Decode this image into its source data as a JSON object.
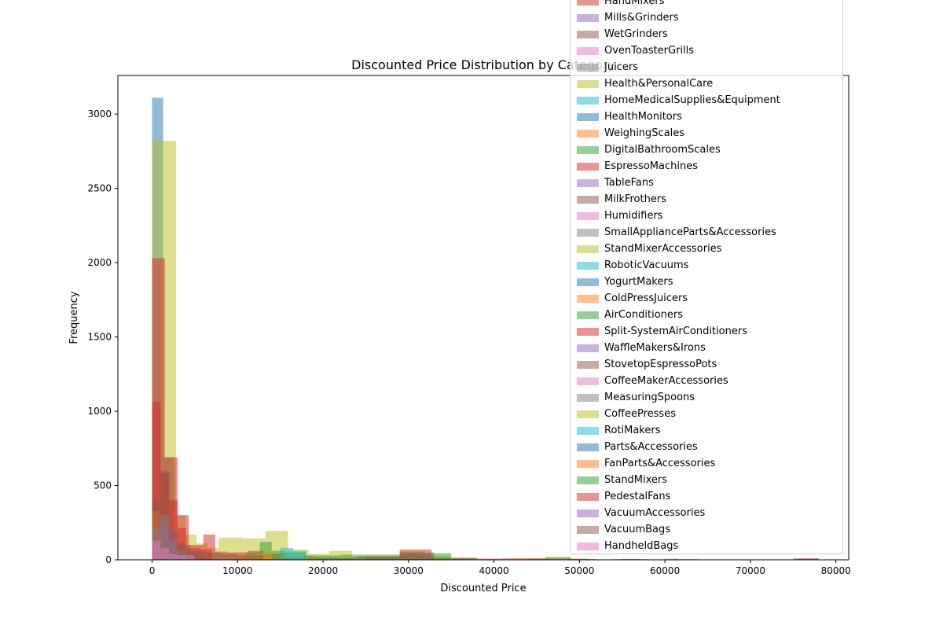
{
  "chart_data": {
    "type": "bar",
    "chart_kind": "overlaid histogram",
    "title": "Discounted Price Distribution by Category",
    "xlabel": "Discounted Price",
    "ylabel": "Frequency",
    "xlim": [
      -4000,
      81500
    ],
    "ylim": [
      0,
      3260
    ],
    "xticks": [
      0,
      10000,
      20000,
      30000,
      40000,
      50000,
      60000,
      70000,
      80000
    ],
    "yticks": [
      0,
      500,
      1000,
      1500,
      2000,
      2500,
      3000
    ],
    "grid": false,
    "legend_position": "upper right",
    "opacity": 0.5,
    "legend": [
      {
        "name": "HandMixers",
        "color": "#d62728"
      },
      {
        "name": "Mills&Grinders",
        "color": "#9467bd"
      },
      {
        "name": "WetGrinders",
        "color": "#8c564b"
      },
      {
        "name": "OvenToasterGrills",
        "color": "#e377c2"
      },
      {
        "name": "Juicers",
        "color": "#7f7f7f"
      },
      {
        "name": "Health&PersonalCare",
        "color": "#bcbd22"
      },
      {
        "name": "HomeMedicalSupplies&Equipment",
        "color": "#17becf"
      },
      {
        "name": "HealthMonitors",
        "color": "#1f77b4"
      },
      {
        "name": "WeighingScales",
        "color": "#ff7f0e"
      },
      {
        "name": "DigitalBathroomScales",
        "color": "#2ca02c"
      },
      {
        "name": "EspressoMachines",
        "color": "#d62728"
      },
      {
        "name": "TableFans",
        "color": "#9467bd"
      },
      {
        "name": "MilkFrothers",
        "color": "#8c564b"
      },
      {
        "name": "Humidifiers",
        "color": "#e377c2"
      },
      {
        "name": "SmallApplianceParts&Accessories",
        "color": "#7f7f7f"
      },
      {
        "name": "StandMixerAccessories",
        "color": "#bcbd22"
      },
      {
        "name": "RoboticVacuums",
        "color": "#17becf"
      },
      {
        "name": "YogurtMakers",
        "color": "#1f77b4"
      },
      {
        "name": "ColdPressJuicers",
        "color": "#ff7f0e"
      },
      {
        "name": "AirConditioners",
        "color": "#2ca02c"
      },
      {
        "name": "Split-SystemAirConditioners",
        "color": "#d62728"
      },
      {
        "name": "WaffleMakers&Irons",
        "color": "#9467bd"
      },
      {
        "name": "StovetopEspressoPots",
        "color": "#8c564b"
      },
      {
        "name": "CoffeeMakerAccessories",
        "color": "#e377c2"
      },
      {
        "name": "MeasuringSpoons",
        "color": "#7f7f7f"
      },
      {
        "name": "CoffeePresses",
        "color": "#bcbd22"
      },
      {
        "name": "RotiMakers",
        "color": "#17becf"
      },
      {
        "name": "Parts&Accessories",
        "color": "#1f77b4"
      },
      {
        "name": "FanParts&Accessories",
        "color": "#ff7f0e"
      },
      {
        "name": "StandMixers",
        "color": "#2ca02c"
      },
      {
        "name": "PedestalFans",
        "color": "#d62728"
      },
      {
        "name": "VacuumAccessories",
        "color": "#9467bd"
      },
      {
        "name": "VacuumBags",
        "color": "#8c564b"
      },
      {
        "name": "HandheldBags",
        "color": "#e377c2"
      }
    ],
    "series": [
      {
        "color": "#1f77b4",
        "bars": [
          [
            0,
            1300,
            3110
          ],
          [
            1300,
            2600,
            690
          ],
          [
            2600,
            3800,
            120
          ],
          [
            3800,
            6000,
            30
          ]
        ]
      },
      {
        "color": "#bcbd22",
        "bars": [
          [
            0,
            1500,
            2820
          ],
          [
            1500,
            2800,
            2820
          ],
          [
            2800,
            3900,
            300
          ],
          [
            3900,
            5200,
            170
          ],
          [
            5200,
            6500,
            110
          ],
          [
            6500,
            7800,
            80
          ],
          [
            7800,
            10600,
            150
          ],
          [
            10600,
            13300,
            145
          ],
          [
            13300,
            15900,
            195
          ],
          [
            15900,
            18300,
            70
          ],
          [
            18300,
            20700,
            40
          ],
          [
            20700,
            23400,
            60
          ],
          [
            23400,
            26400,
            20
          ],
          [
            26400,
            28900,
            15
          ],
          [
            28900,
            31900,
            60
          ],
          [
            31900,
            35000,
            25
          ],
          [
            35000,
            37000,
            8
          ]
        ]
      },
      {
        "color": "#d62728",
        "bars": [
          [
            0,
            1500,
            2030
          ],
          [
            1500,
            3000,
            690
          ],
          [
            3000,
            4300,
            300
          ],
          [
            4300,
            6000,
            100
          ],
          [
            6000,
            7400,
            170
          ],
          [
            7400,
            8800,
            55
          ],
          [
            8800,
            11200,
            50
          ],
          [
            11200,
            13000,
            60
          ],
          [
            13000,
            15500,
            40
          ],
          [
            15500,
            19000,
            20
          ],
          [
            19000,
            24000,
            15
          ],
          [
            24000,
            29000,
            25
          ],
          [
            29000,
            32700,
            70
          ],
          [
            32700,
            38000,
            15
          ],
          [
            38000,
            41000,
            8
          ],
          [
            41000,
            49000,
            10
          ],
          [
            49000,
            52000,
            5
          ],
          [
            54000,
            58000,
            4
          ],
          [
            75500,
            78000,
            8
          ]
        ]
      },
      {
        "color": "#d62728",
        "bars": [
          [
            0,
            1000,
            1065
          ],
          [
            1000,
            2000,
            580
          ],
          [
            2000,
            3000,
            400
          ],
          [
            3000,
            4000,
            215
          ],
          [
            4000,
            5500,
            80
          ],
          [
            5500,
            7000,
            70
          ]
        ]
      },
      {
        "color": "#2ca02c",
        "bars": [
          [
            11000,
            12600,
            50
          ],
          [
            12600,
            14000,
            120
          ],
          [
            14000,
            15500,
            60
          ],
          [
            15500,
            18000,
            50
          ],
          [
            18000,
            22000,
            30
          ],
          [
            22000,
            26000,
            35
          ],
          [
            26000,
            29000,
            35
          ],
          [
            29000,
            33000,
            40
          ],
          [
            33000,
            35000,
            45
          ],
          [
            35000,
            38000,
            10
          ],
          [
            44000,
            46000,
            10
          ],
          [
            46000,
            49000,
            20
          ],
          [
            49000,
            51000,
            8
          ]
        ]
      },
      {
        "color": "#17becf",
        "bars": [
          [
            15000,
            16500,
            80
          ],
          [
            16500,
            18000,
            60
          ],
          [
            60000,
            61500,
            8
          ]
        ]
      },
      {
        "color": "#ff7f0e",
        "bars": [
          [
            0,
            1000,
            330
          ],
          [
            1000,
            1800,
            100
          ],
          [
            1800,
            2600,
            40
          ],
          [
            9000,
            12000,
            30
          ],
          [
            12000,
            14000,
            40
          ],
          [
            42000,
            50000,
            8
          ],
          [
            61000,
            64000,
            6
          ]
        ]
      },
      {
        "color": "#9467bd",
        "bars": [
          [
            0,
            900,
            100
          ],
          [
            900,
            1800,
            300
          ],
          [
            1800,
            2700,
            200
          ],
          [
            2700,
            3500,
            60
          ],
          [
            3500,
            5000,
            40
          ]
        ]
      },
      {
        "color": "#8c564b",
        "bars": [
          [
            0,
            1000,
            400
          ],
          [
            1000,
            2000,
            600
          ],
          [
            2000,
            3000,
            200
          ],
          [
            3000,
            4500,
            100
          ],
          [
            4500,
            6000,
            60
          ],
          [
            6000,
            8000,
            50
          ],
          [
            8000,
            10000,
            40
          ],
          [
            10000,
            13000,
            30
          ],
          [
            25000,
            29000,
            20
          ],
          [
            29000,
            33000,
            50
          ],
          [
            55000,
            57000,
            6
          ],
          [
            75000,
            78000,
            10
          ]
        ]
      },
      {
        "color": "#7f7f7f",
        "bars": [
          [
            0,
            1000,
            220
          ],
          [
            1000,
            2000,
            300
          ],
          [
            2000,
            3000,
            130
          ],
          [
            3000,
            4000,
            60
          ]
        ]
      },
      {
        "color": "#e377c2",
        "bars": [
          [
            0,
            1000,
            130
          ],
          [
            1000,
            2000,
            80
          ],
          [
            2000,
            3000,
            40
          ],
          [
            3000,
            5000,
            30
          ]
        ]
      }
    ]
  }
}
